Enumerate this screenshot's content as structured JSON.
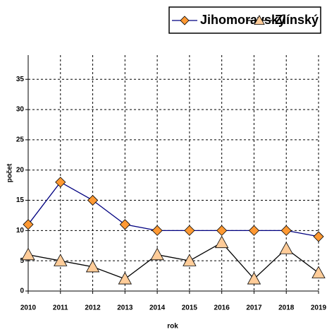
{
  "chart_data": {
    "type": "line",
    "x_label": "rok",
    "y_label": "počet",
    "categories": [
      "2010",
      "2011",
      "2012",
      "2013",
      "2014",
      "2015",
      "2016",
      "2017",
      "2018",
      "2019"
    ],
    "series": [
      {
        "name": "Jihomoravský",
        "color": "#000080",
        "marker": "diamond",
        "marker_color": "#ff9933",
        "values": [
          11,
          18,
          15,
          11,
          10,
          10,
          10,
          10,
          10,
          9
        ]
      },
      {
        "name": "Zlínský",
        "color": "#000000",
        "marker": "triangle",
        "marker_color": "#ffcc99",
        "values": [
          6,
          5,
          4,
          2,
          6,
          5,
          8,
          2,
          7,
          3
        ]
      }
    ],
    "ylim": [
      0,
      39
    ],
    "yticks": [
      0,
      5,
      10,
      15,
      20,
      25,
      30,
      35
    ],
    "grid": true,
    "legend": "top"
  }
}
